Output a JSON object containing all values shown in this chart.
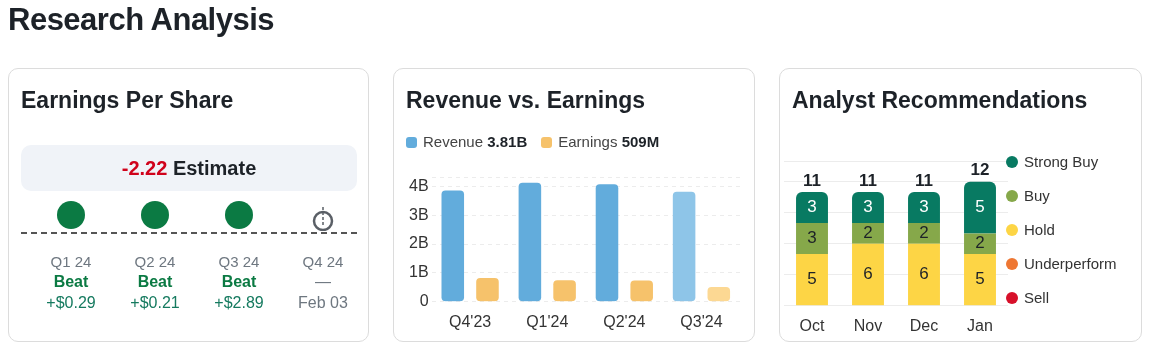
{
  "chart_data": [
    {
      "type": "other",
      "title": "Research Analysis"
    },
    {
      "type": "other",
      "title": "Earnings Per Share",
      "categories": [
        "Q1 24",
        "Q2 24",
        "Q3 24",
        "Q4 24"
      ],
      "colors": [
        "#0b7a43",
        "#0b7a43",
        "#0b7a43",
        null
      ],
      "annotations": [
        "-2.22",
        "Estimate",
        {
          "text": "Beat",
          "x": "Q1 24"
        },
        {
          "text": "Beat",
          "x": "Q2 24"
        },
        {
          "text": "Beat",
          "x": "Q3 24"
        },
        {
          "text": "—",
          "x": "Q4 24"
        }
      ],
      "value_labels": [
        "+$0.29",
        "+$0.21",
        "+$2.89",
        "Feb 03"
      ]
    },
    {
      "type": "bar",
      "title": "Revenue vs. Earnings",
      "categories": [
        "Q4'23",
        "Q1'24",
        "Q2'24",
        "Q3'24"
      ],
      "series": [
        {
          "name": "Revenue 3.81B",
          "color": "#62acdc",
          "colors": [
            "#62acdc",
            "#62acdc",
            "#62acdc",
            "#8ec5e8"
          ],
          "values": [
            3.85,
            4.12,
            4.07,
            3.81
          ]
        },
        {
          "name": "Earnings 509M",
          "color": "#f6c26b",
          "colors": [
            "#f6c26b",
            "#f6c26b",
            "#f6c26b",
            "#fcd893"
          ],
          "values": [
            0.82,
            0.75,
            0.74,
            0.51
          ]
        }
      ],
      "ylim": [
        0,
        4.3
      ],
      "yticks": [
        {
          "value": 0,
          "label": "0"
        },
        {
          "value": 1,
          "label": "1B"
        },
        {
          "value": 2,
          "label": "2B"
        },
        {
          "value": 3,
          "label": "3B"
        },
        {
          "value": 4,
          "label": "4B"
        },
        {
          "value": 4.3,
          "label": null
        }
      ],
      "grid": "y",
      "legend": "top left"
    },
    {
      "type": "bar",
      "title": "Analyst Recommendations",
      "categories": [
        "Oct",
        "Nov",
        "Dec",
        "Jan"
      ],
      "stacked": true,
      "series": [
        {
          "name": "Sell",
          "color": "#d7102a",
          "values": [
            0,
            0,
            0,
            0
          ],
          "value_labels": [
            null,
            null,
            null,
            null
          ]
        },
        {
          "name": "Underperform",
          "color": "#ee7733",
          "values": [
            0,
            0,
            0,
            0
          ],
          "value_labels": [
            null,
            null,
            null,
            null
          ]
        },
        {
          "name": "Hold",
          "color": "#fdd545",
          "values": [
            5,
            6,
            6,
            5
          ],
          "value_labels": [
            "5",
            "6",
            "6",
            "5"
          ]
        },
        {
          "name": "Buy",
          "color": "#86a84a",
          "values": [
            3,
            2,
            2,
            2
          ],
          "value_labels": [
            "3",
            "2",
            "2",
            "2"
          ]
        },
        {
          "name": "Strong Buy",
          "color": "#087a62",
          "values": [
            3,
            3,
            3,
            5
          ],
          "value_labels": [
            "3",
            "3",
            "3",
            "5"
          ]
        }
      ],
      "ylim": [
        0,
        14
      ],
      "yticks": [
        {
          "value": 0,
          "label": null
        },
        {
          "value": 3,
          "label": null
        },
        {
          "value": 6,
          "label": null
        },
        {
          "value": 9,
          "label": null
        },
        {
          "value": 12,
          "label": null
        },
        {
          "value": 14,
          "label": null
        }
      ],
      "grid": "y",
      "legend": "right",
      "tick_labels": "x",
      "totals": [
        "11",
        "11",
        "11",
        "12"
      ]
    }
  ]
}
